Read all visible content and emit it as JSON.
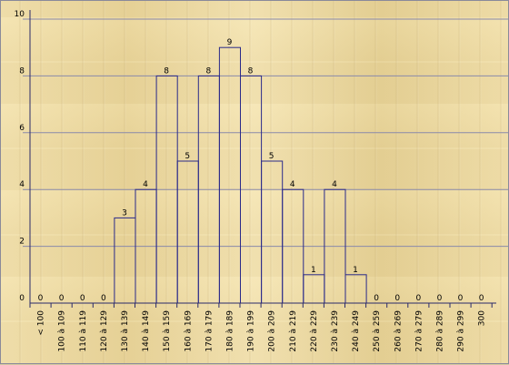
{
  "chart_data": {
    "type": "bar",
    "categories": [
      "< 100",
      "100 à 109",
      "110 à 119",
      "120 à 129",
      "130 à 139",
      "140 à 149",
      "150 à 159",
      "160 à 169",
      "170 à 179",
      "180 à 189",
      "190 à 199",
      "200 à 209",
      "210 à 219",
      "220 à 229",
      "230 à 239",
      "240 à 249",
      "250 à 259",
      "260 à 269",
      "270 à 279",
      "280 à 289",
      "290 à 299",
      "300"
    ],
    "values": [
      0,
      0,
      0,
      0,
      3,
      4,
      8,
      5,
      8,
      9,
      8,
      5,
      4,
      1,
      4,
      1,
      0,
      0,
      0,
      0,
      0,
      0
    ],
    "yticks": [
      "0",
      "2",
      "4",
      "6",
      "8",
      "10"
    ],
    "ylim": [
      0,
      10
    ],
    "title": "",
    "xlabel": "",
    "ylabel": "",
    "grid": true,
    "colors": {
      "bar_stroke": "#2a2a8a",
      "grid": "#8a8aaa",
      "axis": "#2a2a6a"
    }
  }
}
